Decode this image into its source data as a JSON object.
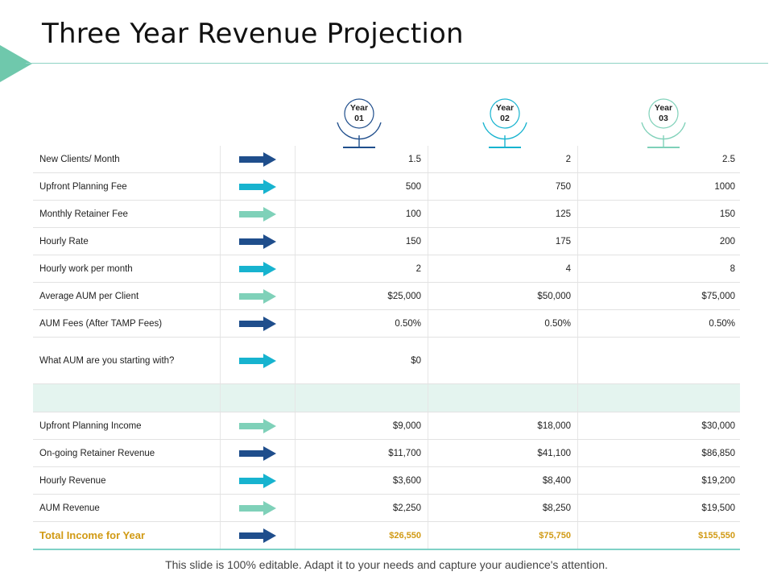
{
  "title": "Three Year Revenue Projection",
  "footer": "This slide is 100% editable. Adapt it to your needs and capture your audience's attention.",
  "colors": {
    "navy": "#1f4e8c",
    "cyan": "#17b3cf",
    "mint": "#7fd1b9",
    "total": "#d19a14",
    "accent": "#6fc8ac"
  },
  "years": [
    {
      "line1": "Year",
      "line2": "01",
      "color": "#1f4e8c"
    },
    {
      "line1": "Year",
      "line2": "02",
      "color": "#17b3cf"
    },
    {
      "line1": "Year",
      "line2": "03",
      "color": "#7fd1b9"
    }
  ],
  "rows": [
    {
      "label": "New Clients/ Month",
      "arrow": "navy",
      "y1": "1.5",
      "y2": "2",
      "y3": "2.5"
    },
    {
      "label": "Upfront Planning Fee",
      "arrow": "cyan",
      "y1": "500",
      "y2": "750",
      "y3": "1000"
    },
    {
      "label": "Monthly Retainer Fee",
      "arrow": "mint",
      "y1": "100",
      "y2": "125",
      "y3": "150"
    },
    {
      "label": "Hourly Rate",
      "arrow": "navy",
      "y1": "150",
      "y2": "175",
      "y3": "200"
    },
    {
      "label": "Hourly work per month",
      "arrow": "cyan",
      "y1": "2",
      "y2": "4",
      "y3": "8"
    },
    {
      "label": "Average AUM per Client",
      "arrow": "mint",
      "y1": "$25,000",
      "y2": "$50,000",
      "y3": "$75,000"
    },
    {
      "label": "AUM Fees (After TAMP Fees)",
      "arrow": "navy",
      "y1": "0.50%",
      "y2": "0.50%",
      "y3": "0.50%"
    },
    {
      "label": "What AUM are you starting with?",
      "arrow": "cyan",
      "y1": "$0",
      "y2": "",
      "y3": ""
    },
    {
      "label": "Upfront Planning Income",
      "arrow": "mint",
      "y1": "$9,000",
      "y2": "$18,000",
      "y3": "$30,000"
    },
    {
      "label": "On-going Retainer Revenue",
      "arrow": "navy",
      "y1": "$11,700",
      "y2": "$41,100",
      "y3": "$86,850"
    },
    {
      "label": "Hourly Revenue",
      "arrow": "cyan",
      "y1": "$3,600",
      "y2": "$8,400",
      "y3": "$19,200"
    },
    {
      "label": "AUM Revenue",
      "arrow": "mint",
      "y1": "$2,250",
      "y2": "$8,250",
      "y3": "$19,500"
    }
  ],
  "total": {
    "label": "Total Income for Year",
    "arrow": "navy",
    "y1": "$26,550",
    "y2": "$75,750",
    "y3": "$155,550"
  }
}
